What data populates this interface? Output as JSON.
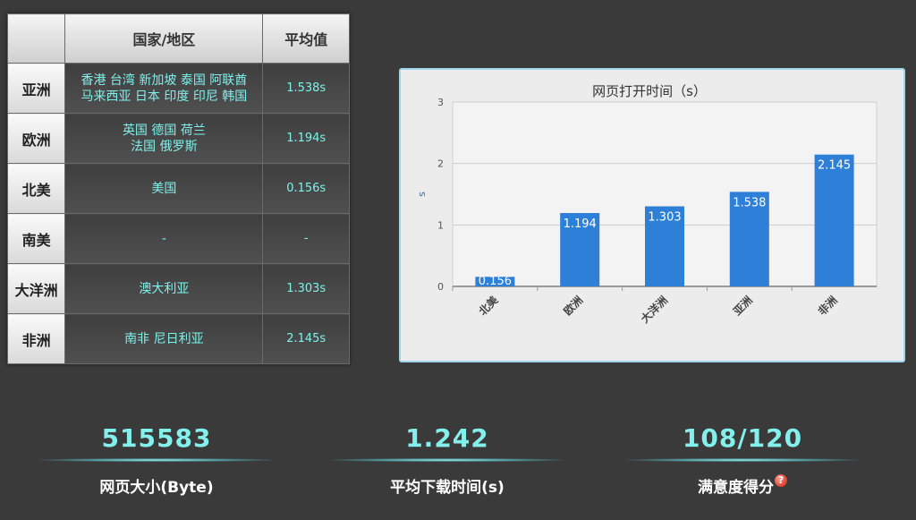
{
  "table": {
    "headers": [
      "国家/地区",
      "平均值"
    ],
    "rows": [
      {
        "region": "亚洲",
        "countries_line1": "香港 台湾 新加坡 泰国 阿联酋",
        "countries_line2": "马来西亚 日本 印度 印尼 韩国",
        "avg": "1.538s"
      },
      {
        "region": "欧洲",
        "countries_line1": "英国 德国 荷兰",
        "countries_line2": "法国 俄罗斯",
        "avg": "1.194s"
      },
      {
        "region": "北美",
        "countries_line1": "美国",
        "countries_line2": "",
        "avg": "0.156s"
      },
      {
        "region": "南美",
        "countries_line1": "-",
        "countries_line2": "",
        "avg": "-"
      },
      {
        "region": "大洋洲",
        "countries_line1": "澳大利亚",
        "countries_line2": "",
        "avg": "1.303s"
      },
      {
        "region": "非洲",
        "countries_line1": "南非 尼日利亚",
        "countries_line2": "",
        "avg": "2.145s"
      }
    ]
  },
  "chart_data": {
    "type": "bar",
    "title": "网页打开时间（s）",
    "ylabel": "s",
    "xlabel": "",
    "categories": [
      "北美",
      "欧洲",
      "大洋洲",
      "亚洲",
      "非洲"
    ],
    "values": [
      0.156,
      1.194,
      1.303,
      1.538,
      2.145
    ],
    "data_labels": [
      "0.156",
      "1.194",
      "1.303",
      "1.538",
      "2.145"
    ],
    "ylim": [
      0,
      3
    ],
    "yticks": [
      "0",
      "1",
      "2",
      "3"
    ],
    "grid": true,
    "bar_color": "#2e7fd8"
  },
  "stats": {
    "page_size": {
      "value": "515583",
      "label": "网页大小(Byte)"
    },
    "avg_download": {
      "value": "1.242",
      "label": "平均下载时间(s)"
    },
    "satisfaction": {
      "value": "108/120",
      "label": "满意度得分",
      "help_icon": "question-icon"
    }
  }
}
